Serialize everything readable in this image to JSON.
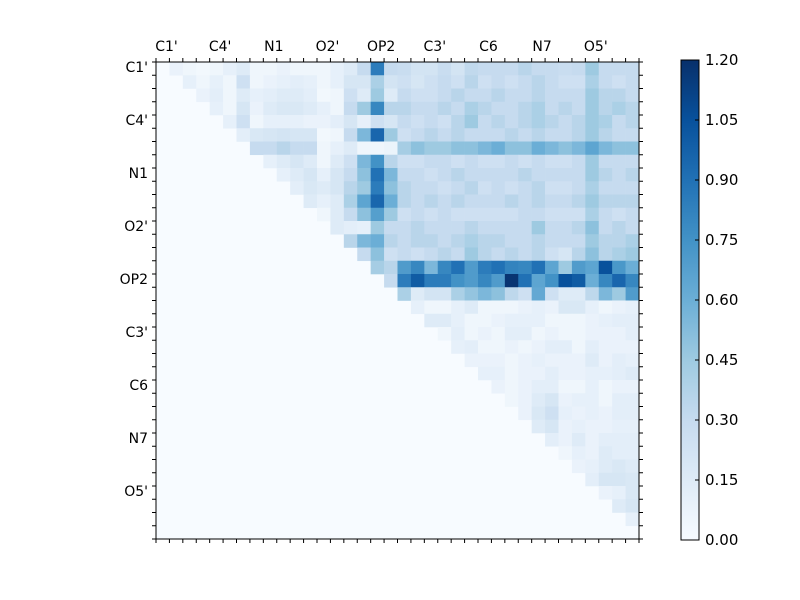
{
  "figure": {
    "background": "#ffffff"
  },
  "chart_data": {
    "type": "heatmap",
    "description": "Upper-triangular pairwise matrix heatmap, Blues colormap, atom-name tick labels on top x-axis and left y-axis",
    "x_labels": [
      "C1'",
      "C4'",
      "N1",
      "O2'",
      "OP2",
      "C3'",
      "C6",
      "N7",
      "O5'"
    ],
    "y_labels": [
      "C1'",
      "C4'",
      "N1",
      "O2'",
      "OP2",
      "C3'",
      "C6",
      "N7",
      "O5'"
    ],
    "n_rows": 36,
    "n_cols": 36,
    "label_every": 4,
    "vmin": 0.0,
    "vmax": 1.2,
    "grid": false,
    "colormap": {
      "name": "Blues",
      "stops": [
        "#f7fbff",
        "#deebf7",
        "#c6dbef",
        "#9ecae1",
        "#6baed6",
        "#4292c6",
        "#2171b5",
        "#08519c",
        "#08306b"
      ]
    },
    "colorbar": {
      "position": "right",
      "tick_labels": [
        "1.20",
        "1.05",
        "0.90",
        "0.75",
        "0.60",
        "0.45",
        "0.30",
        "0.15",
        "0.00"
      ]
    },
    "values": [
      [
        0,
        0.08,
        0.05,
        0.03,
        0.05,
        0.1,
        0.15,
        0.05,
        0.05,
        0.08,
        0.05,
        0.05,
        0.05,
        0.1,
        0.15,
        0.3,
        0.85,
        0.3,
        0.28,
        0.22,
        0.22,
        0.28,
        0.22,
        0.32,
        0.3,
        0.3,
        0.3,
        0.35,
        0.3,
        0.3,
        0.28,
        0.3,
        0.45,
        0.3,
        0.3,
        0.3
      ],
      [
        0,
        0,
        0.1,
        0.05,
        0.1,
        0.05,
        0.25,
        0.05,
        0.08,
        0.1,
        0.12,
        0.1,
        0.05,
        0.1,
        0.2,
        0.2,
        0.4,
        0.22,
        0.25,
        0.2,
        0.25,
        0.3,
        0.25,
        0.35,
        0.25,
        0.3,
        0.25,
        0.3,
        0.35,
        0.3,
        0.25,
        0.25,
        0.4,
        0.3,
        0.25,
        0.3
      ],
      [
        0,
        0,
        0,
        0.08,
        0.12,
        0.05,
        0.15,
        0.1,
        0.12,
        0.15,
        0.15,
        0.12,
        0.03,
        0.05,
        0.25,
        0.15,
        0.45,
        0.15,
        0.3,
        0.25,
        0.25,
        0.3,
        0.35,
        0.3,
        0.3,
        0.35,
        0.3,
        0.3,
        0.35,
        0.3,
        0.3,
        0.3,
        0.45,
        0.35,
        0.35,
        0.3
      ],
      [
        0,
        0,
        0,
        0,
        0.1,
        0.05,
        0.2,
        0.08,
        0.15,
        0.18,
        0.18,
        0.15,
        0.1,
        0.05,
        0.3,
        0.45,
        0.8,
        0.35,
        0.35,
        0.3,
        0.3,
        0.35,
        0.3,
        0.4,
        0.35,
        0.3,
        0.3,
        0.35,
        0.4,
        0.3,
        0.35,
        0.3,
        0.45,
        0.35,
        0.4,
        0.35
      ],
      [
        0,
        0,
        0,
        0,
        0,
        0.1,
        0.25,
        0.05,
        0.1,
        0.1,
        0.1,
        0.08,
        0.08,
        0.12,
        0.2,
        0.1,
        0.25,
        0.2,
        0.3,
        0.25,
        0.3,
        0.25,
        0.35,
        0.45,
        0.3,
        0.35,
        0.3,
        0.35,
        0.4,
        0.35,
        0.3,
        0.35,
        0.45,
        0.4,
        0.3,
        0.35
      ],
      [
        0,
        0,
        0,
        0,
        0,
        0,
        0.12,
        0.18,
        0.2,
        0.22,
        0.2,
        0.2,
        0.03,
        0.05,
        0.3,
        0.55,
        0.95,
        0.45,
        0.25,
        0.3,
        0.35,
        0.3,
        0.35,
        0.3,
        0.3,
        0.3,
        0.35,
        0.3,
        0.35,
        0.3,
        0.3,
        0.35,
        0.45,
        0.35,
        0.3,
        0.3
      ],
      [
        0,
        0,
        0,
        0,
        0,
        0,
        0,
        0.3,
        0.3,
        0.35,
        0.3,
        0.3,
        0.05,
        0.1,
        0.15,
        0.05,
        0.05,
        0.07,
        0.42,
        0.5,
        0.45,
        0.45,
        0.5,
        0.5,
        0.55,
        0.6,
        0.5,
        0.5,
        0.6,
        0.55,
        0.5,
        0.55,
        0.65,
        0.55,
        0.5,
        0.5
      ],
      [
        0,
        0,
        0,
        0,
        0,
        0,
        0,
        0,
        0.1,
        0.15,
        0.2,
        0.15,
        0.05,
        0.15,
        0.25,
        0.55,
        0.75,
        0.35,
        0.25,
        0.25,
        0.3,
        0.3,
        0.25,
        0.3,
        0.25,
        0.25,
        0.3,
        0.25,
        0.3,
        0.25,
        0.25,
        0.3,
        0.45,
        0.3,
        0.3,
        0.3
      ],
      [
        0,
        0,
        0,
        0,
        0,
        0,
        0,
        0,
        0,
        0.1,
        0.15,
        0.2,
        0.1,
        0.2,
        0.3,
        0.5,
        0.9,
        0.55,
        0.3,
        0.3,
        0.25,
        0.3,
        0.35,
        0.3,
        0.3,
        0.3,
        0.3,
        0.35,
        0.3,
        0.3,
        0.3,
        0.3,
        0.45,
        0.35,
        0.3,
        0.35
      ],
      [
        0,
        0,
        0,
        0,
        0,
        0,
        0,
        0,
        0,
        0,
        0.12,
        0.18,
        0.15,
        0.2,
        0.35,
        0.45,
        0.85,
        0.5,
        0.35,
        0.3,
        0.3,
        0.25,
        0.3,
        0.35,
        0.25,
        0.3,
        0.25,
        0.3,
        0.35,
        0.25,
        0.25,
        0.3,
        0.4,
        0.3,
        0.3,
        0.3
      ],
      [
        0,
        0,
        0,
        0,
        0,
        0,
        0,
        0,
        0,
        0,
        0,
        0.15,
        0.1,
        0.15,
        0.4,
        0.65,
        0.95,
        0.6,
        0.35,
        0.3,
        0.35,
        0.3,
        0.35,
        0.3,
        0.3,
        0.3,
        0.35,
        0.3,
        0.35,
        0.3,
        0.3,
        0.35,
        0.45,
        0.35,
        0.35,
        0.35
      ],
      [
        0,
        0,
        0,
        0,
        0,
        0,
        0,
        0,
        0,
        0,
        0,
        0,
        0.05,
        0.15,
        0.3,
        0.5,
        0.68,
        0.45,
        0.25,
        0.3,
        0.25,
        0.3,
        0.25,
        0.25,
        0.25,
        0.25,
        0.25,
        0.3,
        0.3,
        0.25,
        0.25,
        0.25,
        0.4,
        0.3,
        0.25,
        0.3
      ],
      [
        0,
        0,
        0,
        0,
        0,
        0,
        0,
        0,
        0,
        0,
        0,
        0,
        0,
        0.15,
        0.12,
        0.1,
        0.45,
        0.3,
        0.3,
        0.35,
        0.3,
        0.3,
        0.3,
        0.35,
        0.3,
        0.3,
        0.3,
        0.3,
        0.45,
        0.3,
        0.3,
        0.35,
        0.5,
        0.3,
        0.35,
        0.3
      ],
      [
        0,
        0,
        0,
        0,
        0,
        0,
        0,
        0,
        0,
        0,
        0,
        0,
        0,
        0,
        0.35,
        0.55,
        0.6,
        0.35,
        0.3,
        0.35,
        0.35,
        0.3,
        0.35,
        0.4,
        0.35,
        0.35,
        0.3,
        0.3,
        0.35,
        0.3,
        0.3,
        0.3,
        0.45,
        0.35,
        0.35,
        0.4
      ],
      [
        0,
        0,
        0,
        0,
        0,
        0,
        0,
        0,
        0,
        0,
        0,
        0,
        0,
        0,
        0,
        0.3,
        0.5,
        0.25,
        0.3,
        0.25,
        0.3,
        0.35,
        0.3,
        0.45,
        0.35,
        0.3,
        0.35,
        0.3,
        0.35,
        0.25,
        0.2,
        0.35,
        0.5,
        0.35,
        0.4,
        0.45
      ],
      [
        0,
        0,
        0,
        0,
        0,
        0,
        0,
        0,
        0,
        0,
        0,
        0,
        0,
        0,
        0,
        0,
        0.42,
        0.35,
        0.7,
        0.8,
        0.55,
        0.8,
        0.9,
        0.7,
        0.85,
        0.9,
        0.82,
        0.8,
        0.9,
        0.65,
        0.45,
        0.7,
        0.65,
        1.05,
        0.72,
        0.6
      ],
      [
        0,
        0,
        0,
        0,
        0,
        0,
        0,
        0,
        0,
        0,
        0,
        0,
        0,
        0,
        0,
        0,
        0,
        0.3,
        0.85,
        1.0,
        0.85,
        0.85,
        0.75,
        0.7,
        0.8,
        0.7,
        1.18,
        0.9,
        0.65,
        0.75,
        1.05,
        1.0,
        0.6,
        0.8,
        0.95,
        0.8
      ],
      [
        0,
        0,
        0,
        0,
        0,
        0,
        0,
        0,
        0,
        0,
        0,
        0,
        0,
        0,
        0,
        0,
        0,
        0,
        0.4,
        0.15,
        0.22,
        0.22,
        0.4,
        0.48,
        0.55,
        0.5,
        0.33,
        0.25,
        0.63,
        0.25,
        0.15,
        0.15,
        0.33,
        0.55,
        0.45,
        0.7
      ],
      [
        0,
        0,
        0,
        0,
        0,
        0,
        0,
        0,
        0,
        0,
        0,
        0,
        0,
        0,
        0,
        0,
        0,
        0,
        0,
        0.1,
        0.05,
        0.05,
        0.1,
        0.15,
        0.05,
        0.05,
        0.05,
        0.08,
        0.1,
        0.08,
        0.18,
        0.18,
        0.1,
        0.05,
        0.08,
        0.1
      ],
      [
        0,
        0,
        0,
        0,
        0,
        0,
        0,
        0,
        0,
        0,
        0,
        0,
        0,
        0,
        0,
        0,
        0,
        0,
        0,
        0,
        0.15,
        0.15,
        0.1,
        0.05,
        0.05,
        0.08,
        0.1,
        0.1,
        0.1,
        0.05,
        0.05,
        0.05,
        0.08,
        0.1,
        0.12,
        0.12
      ],
      [
        0,
        0,
        0,
        0,
        0,
        0,
        0,
        0,
        0,
        0,
        0,
        0,
        0,
        0,
        0,
        0,
        0,
        0,
        0,
        0,
        0,
        0.05,
        0.12,
        0.05,
        0.08,
        0.05,
        0.12,
        0.12,
        0.05,
        0.08,
        0.05,
        0.05,
        0.08,
        0.08,
        0.08,
        0.12
      ],
      [
        0,
        0,
        0,
        0,
        0,
        0,
        0,
        0,
        0,
        0,
        0,
        0,
        0,
        0,
        0,
        0,
        0,
        0,
        0,
        0,
        0,
        0,
        0.1,
        0.12,
        0.05,
        0.05,
        0.08,
        0.05,
        0.08,
        0.12,
        0.12,
        0.05,
        0.12,
        0.08,
        0.08,
        0.08
      ],
      [
        0,
        0,
        0,
        0,
        0,
        0,
        0,
        0,
        0,
        0,
        0,
        0,
        0,
        0,
        0,
        0,
        0,
        0,
        0,
        0,
        0,
        0,
        0,
        0.08,
        0.08,
        0.08,
        0.05,
        0.08,
        0.1,
        0.08,
        0.08,
        0.08,
        0.15,
        0.08,
        0.12,
        0.1
      ],
      [
        0,
        0,
        0,
        0,
        0,
        0,
        0,
        0,
        0,
        0,
        0,
        0,
        0,
        0,
        0,
        0,
        0,
        0,
        0,
        0,
        0,
        0,
        0,
        0,
        0.1,
        0.1,
        0.05,
        0.08,
        0.08,
        0.12,
        0.08,
        0.08,
        0.1,
        0.1,
        0.12,
        0.15
      ],
      [
        0,
        0,
        0,
        0,
        0,
        0,
        0,
        0,
        0,
        0,
        0,
        0,
        0,
        0,
        0,
        0,
        0,
        0,
        0,
        0,
        0,
        0,
        0,
        0,
        0,
        0.08,
        0.05,
        0.08,
        0.12,
        0.12,
        0.05,
        0.05,
        0.1,
        0.05,
        0.08,
        0.08
      ],
      [
        0,
        0,
        0,
        0,
        0,
        0,
        0,
        0,
        0,
        0,
        0,
        0,
        0,
        0,
        0,
        0,
        0,
        0,
        0,
        0,
        0,
        0,
        0,
        0,
        0,
        0,
        0.05,
        0.08,
        0.15,
        0.2,
        0.08,
        0.1,
        0.1,
        0.05,
        0.12,
        0.12
      ],
      [
        0,
        0,
        0,
        0,
        0,
        0,
        0,
        0,
        0,
        0,
        0,
        0,
        0,
        0,
        0,
        0,
        0,
        0,
        0,
        0,
        0,
        0,
        0,
        0,
        0,
        0,
        0,
        0.08,
        0.18,
        0.25,
        0.1,
        0.08,
        0.1,
        0.08,
        0.12,
        0.12
      ],
      [
        0,
        0,
        0,
        0,
        0,
        0,
        0,
        0,
        0,
        0,
        0,
        0,
        0,
        0,
        0,
        0,
        0,
        0,
        0,
        0,
        0,
        0,
        0,
        0,
        0,
        0,
        0,
        0,
        0.15,
        0.2,
        0.08,
        0.1,
        0.08,
        0.08,
        0.1,
        0.1
      ],
      [
        0,
        0,
        0,
        0,
        0,
        0,
        0,
        0,
        0,
        0,
        0,
        0,
        0,
        0,
        0,
        0,
        0,
        0,
        0,
        0,
        0,
        0,
        0,
        0,
        0,
        0,
        0,
        0,
        0,
        0.12,
        0.08,
        0.15,
        0.08,
        0.12,
        0.12,
        0.12
      ],
      [
        0,
        0,
        0,
        0,
        0,
        0,
        0,
        0,
        0,
        0,
        0,
        0,
        0,
        0,
        0,
        0,
        0,
        0,
        0,
        0,
        0,
        0,
        0,
        0,
        0,
        0,
        0,
        0,
        0,
        0,
        0.05,
        0.1,
        0.08,
        0.15,
        0.12,
        0.12
      ],
      [
        0,
        0,
        0,
        0,
        0,
        0,
        0,
        0,
        0,
        0,
        0,
        0,
        0,
        0,
        0,
        0,
        0,
        0,
        0,
        0,
        0,
        0,
        0,
        0,
        0,
        0,
        0,
        0,
        0,
        0,
        0,
        0.08,
        0.1,
        0.15,
        0.18,
        0.15
      ],
      [
        0,
        0,
        0,
        0,
        0,
        0,
        0,
        0,
        0,
        0,
        0,
        0,
        0,
        0,
        0,
        0,
        0,
        0,
        0,
        0,
        0,
        0,
        0,
        0,
        0,
        0,
        0,
        0,
        0,
        0,
        0,
        0,
        0.12,
        0.2,
        0.2,
        0.18
      ],
      [
        0,
        0,
        0,
        0,
        0,
        0,
        0,
        0,
        0,
        0,
        0,
        0,
        0,
        0,
        0,
        0,
        0,
        0,
        0,
        0,
        0,
        0,
        0,
        0,
        0,
        0,
        0,
        0,
        0,
        0,
        0,
        0,
        0,
        0.08,
        0.1,
        0.18
      ],
      [
        0,
        0,
        0,
        0,
        0,
        0,
        0,
        0,
        0,
        0,
        0,
        0,
        0,
        0,
        0,
        0,
        0,
        0,
        0,
        0,
        0,
        0,
        0,
        0,
        0,
        0,
        0,
        0,
        0,
        0,
        0,
        0,
        0,
        0,
        0.15,
        0.2
      ],
      [
        0,
        0,
        0,
        0,
        0,
        0,
        0,
        0,
        0,
        0,
        0,
        0,
        0,
        0,
        0,
        0,
        0,
        0,
        0,
        0,
        0,
        0,
        0,
        0,
        0,
        0,
        0,
        0,
        0,
        0,
        0,
        0,
        0,
        0,
        0,
        0.1
      ],
      [
        0,
        0,
        0,
        0,
        0,
        0,
        0,
        0,
        0,
        0,
        0,
        0,
        0,
        0,
        0,
        0,
        0,
        0,
        0,
        0,
        0,
        0,
        0,
        0,
        0,
        0,
        0,
        0,
        0,
        0,
        0,
        0,
        0,
        0,
        0,
        0
      ]
    ]
  }
}
